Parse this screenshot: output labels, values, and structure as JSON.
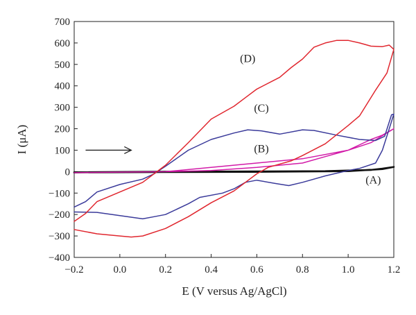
{
  "chart_data": {
    "type": "line",
    "title": "",
    "xlabel": "E (V versus Ag/AgCl)",
    "ylabel": "I (μA)",
    "xlim": [
      -0.2,
      1.2
    ],
    "ylim": [
      -400,
      700
    ],
    "xticks": [
      "−0.2",
      "0.0",
      "0.2",
      "0.4",
      "0.6",
      "0.8",
      "1.0",
      "1.2"
    ],
    "yticks": [
      "−400",
      "−300",
      "−200",
      "−100",
      "0",
      "100",
      "200",
      "300",
      "400",
      "500",
      "600",
      "700"
    ],
    "x_tick_values": [
      -0.2,
      0,
      0.2,
      0.4,
      0.6,
      0.8,
      1.0,
      1.2
    ],
    "y_tick_values": [
      -400,
      -300,
      -200,
      -100,
      0,
      100,
      200,
      300,
      400,
      500,
      600,
      700
    ],
    "grid": false,
    "legend": "none",
    "series": [
      {
        "color": "#111111",
        "points": [
          [
            -0.2,
            -3
          ],
          [
            0.2,
            0
          ],
          [
            0.6,
            1
          ],
          [
            0.9,
            2
          ],
          [
            1.1,
            8
          ],
          [
            1.15,
            14
          ],
          [
            1.2,
            22
          ],
          [
            1.15,
            12
          ],
          [
            1.0,
            2
          ],
          [
            0.6,
            -1
          ],
          [
            0.2,
            -2
          ],
          [
            -0.2,
            -4
          ]
        ]
      },
      {
        "color": "#d21aa8",
        "points": [
          [
            -0.2,
            -5
          ],
          [
            0.2,
            0
          ],
          [
            0.6,
            40
          ],
          [
            0.8,
            60
          ],
          [
            1.0,
            100
          ],
          [
            1.1,
            135
          ],
          [
            1.2,
            200
          ],
          [
            1.15,
            170
          ],
          [
            1.1,
            150
          ],
          [
            1.0,
            100
          ],
          [
            0.9,
            70
          ],
          [
            0.8,
            40
          ],
          [
            0.6,
            20
          ],
          [
            0.4,
            5
          ],
          [
            0.2,
            0
          ],
          [
            -0.2,
            -5
          ]
        ]
      },
      {
        "color": "#3a3a9a",
        "points": [
          [
            -0.2,
            -165
          ],
          [
            -0.15,
            -140
          ],
          [
            -0.1,
            -95
          ],
          [
            0.0,
            -60
          ],
          [
            0.1,
            -35
          ],
          [
            0.15,
            -10
          ],
          [
            0.2,
            25
          ],
          [
            0.3,
            100
          ],
          [
            0.4,
            150
          ],
          [
            0.5,
            180
          ],
          [
            0.56,
            195
          ],
          [
            0.62,
            190
          ],
          [
            0.7,
            175
          ],
          [
            0.8,
            195
          ],
          [
            0.85,
            192
          ],
          [
            0.95,
            170
          ],
          [
            1.05,
            150
          ],
          [
            1.12,
            145
          ],
          [
            1.16,
            165
          ],
          [
            1.19,
            265
          ],
          [
            1.2,
            268
          ],
          [
            1.18,
            200
          ],
          [
            1.15,
            100
          ],
          [
            1.12,
            40
          ],
          [
            1.05,
            15
          ],
          [
            1.0,
            5
          ],
          [
            0.9,
            -20
          ],
          [
            0.8,
            -50
          ],
          [
            0.74,
            -65
          ],
          [
            0.68,
            -55
          ],
          [
            0.6,
            -40
          ],
          [
            0.55,
            -50
          ],
          [
            0.5,
            -80
          ],
          [
            0.45,
            -100
          ],
          [
            0.35,
            -120
          ],
          [
            0.3,
            -150
          ],
          [
            0.2,
            -200
          ],
          [
            0.15,
            -210
          ],
          [
            0.1,
            -220
          ],
          [
            0.0,
            -205
          ],
          [
            -0.1,
            -190
          ],
          [
            -0.2,
            -188
          ]
        ]
      },
      {
        "color": "#e0262e",
        "points": [
          [
            -0.2,
            -232
          ],
          [
            -0.15,
            -195
          ],
          [
            -0.1,
            -140
          ],
          [
            0.0,
            -95
          ],
          [
            0.1,
            -50
          ],
          [
            0.2,
            30
          ],
          [
            0.3,
            135
          ],
          [
            0.4,
            245
          ],
          [
            0.5,
            305
          ],
          [
            0.55,
            345
          ],
          [
            0.6,
            385
          ],
          [
            0.7,
            440
          ],
          [
            0.75,
            485
          ],
          [
            0.8,
            525
          ],
          [
            0.85,
            580
          ],
          [
            0.9,
            600
          ],
          [
            0.95,
            612
          ],
          [
            1.0,
            612
          ],
          [
            1.05,
            600
          ],
          [
            1.1,
            585
          ],
          [
            1.15,
            583
          ],
          [
            1.18,
            590
          ],
          [
            1.2,
            570
          ],
          [
            1.17,
            460
          ],
          [
            1.12,
            380
          ],
          [
            1.05,
            260
          ],
          [
            1.0,
            215
          ],
          [
            0.9,
            130
          ],
          [
            0.8,
            75
          ],
          [
            0.75,
            50
          ],
          [
            0.65,
            20
          ],
          [
            0.6,
            -10
          ],
          [
            0.5,
            -90
          ],
          [
            0.4,
            -145
          ],
          [
            0.3,
            -210
          ],
          [
            0.2,
            -265
          ],
          [
            0.1,
            -300
          ],
          [
            0.05,
            -305
          ],
          [
            0.0,
            -300
          ],
          [
            -0.1,
            -290
          ],
          [
            -0.2,
            -270
          ]
        ]
      }
    ],
    "annotations": [
      {
        "text": "(A)",
        "x": 1.11,
        "y": -55
      },
      {
        "text": "(B)",
        "x": 0.62,
        "y": 90
      },
      {
        "text": "(C)",
        "x": 0.62,
        "y": 280
      },
      {
        "text": "(D)",
        "x": 0.56,
        "y": 510
      }
    ],
    "arrow": {
      "x_from": -0.15,
      "x_to": 0.05,
      "y": 100,
      "direction": "right"
    }
  }
}
